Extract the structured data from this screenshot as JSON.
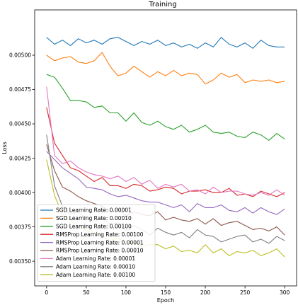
{
  "chart_data": {
    "type": "line",
    "title": "Training",
    "xlabel": "Epoch",
    "ylabel": "Loss",
    "xlim": [
      -15,
      315
    ],
    "ylim": [
      0.00332,
      0.00533
    ],
    "xticks": [
      0,
      50,
      100,
      150,
      200,
      250,
      300
    ],
    "xtick_labels": [
      "0",
      "50",
      "100",
      "150",
      "200",
      "250",
      "300"
    ],
    "yticks": [
      0.0035,
      0.00375,
      0.004,
      0.00425,
      0.0045,
      0.00475,
      0.005
    ],
    "ytick_labels": [
      "0.00350",
      "0.00375",
      "0.00400",
      "0.00425",
      "0.00450",
      "0.00475",
      "0.00500"
    ],
    "grid": false,
    "legend_position": "lower-left",
    "x": [
      0,
      10,
      20,
      30,
      40,
      50,
      60,
      70,
      80,
      90,
      100,
      110,
      120,
      130,
      140,
      150,
      160,
      170,
      180,
      190,
      200,
      210,
      220,
      230,
      240,
      250,
      260,
      270,
      280,
      290,
      300
    ],
    "series": [
      {
        "name": "SGD Learning Rate: 0.00001",
        "color": "#1f77b4",
        "values": [
          0.00513,
          0.00508,
          0.00511,
          0.00507,
          0.00512,
          0.00509,
          0.00511,
          0.00508,
          0.00512,
          0.00513,
          0.0051,
          0.00507,
          0.0051,
          0.00508,
          0.00511,
          0.00507,
          0.00509,
          0.00506,
          0.00508,
          0.00505,
          0.00509,
          0.00506,
          0.00513,
          0.00508,
          0.00506,
          0.00509,
          0.00505,
          0.00511,
          0.00507,
          0.00506,
          0.00506
        ]
      },
      {
        "name": "SGD Learning Rate: 0.00010",
        "color": "#ff7f0e",
        "values": [
          0.005,
          0.00496,
          0.00498,
          0.00499,
          0.00495,
          0.00494,
          0.00496,
          0.00502,
          0.00492,
          0.00485,
          0.00487,
          0.00492,
          0.00488,
          0.00484,
          0.00488,
          0.00485,
          0.00489,
          0.00485,
          0.00487,
          0.00486,
          0.00479,
          0.00482,
          0.00487,
          0.00484,
          0.00486,
          0.0048,
          0.00482,
          0.00481,
          0.00482,
          0.0048,
          0.00481
        ]
      },
      {
        "name": "SGD Learning Rate: 0.00100",
        "color": "#2ca02c",
        "values": [
          0.00486,
          0.00484,
          0.00476,
          0.00467,
          0.00467,
          0.00466,
          0.00462,
          0.00463,
          0.00458,
          0.00458,
          0.00452,
          0.00458,
          0.00451,
          0.00449,
          0.00452,
          0.00448,
          0.00446,
          0.00449,
          0.00444,
          0.00446,
          0.00449,
          0.00444,
          0.00443,
          0.00444,
          0.00441,
          0.0044,
          0.00444,
          0.00442,
          0.00438,
          0.00443,
          0.00439
        ]
      },
      {
        "name": "RMSProp Learning Rate: 0.00100",
        "color": "#d62728",
        "values": [
          0.00462,
          0.00436,
          0.00427,
          0.00418,
          0.00416,
          0.00412,
          0.00408,
          0.00411,
          0.00405,
          0.00405,
          0.00403,
          0.00406,
          0.00405,
          0.00401,
          0.00402,
          0.00404,
          0.00403,
          0.00399,
          0.00401,
          0.00401,
          0.00402,
          0.004,
          0.004,
          0.00403,
          0.00398,
          0.00399,
          0.00397,
          0.00401,
          0.00399,
          0.00397,
          0.004
        ]
      },
      {
        "name": "RMSProp Learning Rate: 0.00001",
        "color": "#9467bd",
        "values": [
          0.0043,
          0.00424,
          0.00418,
          0.00414,
          0.0041,
          0.00404,
          0.00403,
          0.00402,
          0.00399,
          0.00397,
          0.00398,
          0.00396,
          0.00394,
          0.00393,
          0.00393,
          0.00391,
          0.00389,
          0.00391,
          0.00386,
          0.00392,
          0.00389,
          0.00389,
          0.00391,
          0.00387,
          0.00386,
          0.00389,
          0.00385,
          0.00389,
          0.00386,
          0.00384,
          0.00388
        ]
      },
      {
        "name": "RMSProp Learning Rate: 0.00010",
        "color": "#8c564b",
        "values": [
          0.00435,
          0.00416,
          0.00404,
          0.00401,
          0.00397,
          0.00394,
          0.00392,
          0.0039,
          0.00386,
          0.00388,
          0.00383,
          0.00386,
          0.00384,
          0.00383,
          0.00386,
          0.0038,
          0.00382,
          0.0038,
          0.00379,
          0.00381,
          0.00377,
          0.00381,
          0.00376,
          0.00378,
          0.00379,
          0.00376,
          0.00373,
          0.00374,
          0.00372,
          0.00375,
          0.00369
        ]
      },
      {
        "name": "Adam Learning Rate: 0.00001",
        "color": "#e377c2",
        "values": [
          0.00477,
          0.00427,
          0.00421,
          0.00423,
          0.00418,
          0.00415,
          0.00413,
          0.00412,
          0.0041,
          0.00412,
          0.00408,
          0.00411,
          0.00406,
          0.00409,
          0.00403,
          0.00406,
          0.00404,
          0.00406,
          0.00401,
          0.00402,
          0.00399,
          0.00404,
          0.004,
          0.00401,
          0.00401,
          0.00399,
          0.00398,
          0.004,
          0.00398,
          0.00402,
          0.00398
        ]
      },
      {
        "name": "Adam Learning Rate: 0.00010",
        "color": "#7f7f7f",
        "values": [
          0.00442,
          0.00405,
          0.0039,
          0.00384,
          0.00386,
          0.00381,
          0.00379,
          0.00381,
          0.00377,
          0.00378,
          0.00372,
          0.00376,
          0.00373,
          0.00369,
          0.00374,
          0.00371,
          0.00369,
          0.00371,
          0.00367,
          0.00373,
          0.00369,
          0.00368,
          0.00364,
          0.00366,
          0.00368,
          0.00369,
          0.00364,
          0.00366,
          0.00363,
          0.00368,
          0.00365
        ]
      },
      {
        "name": "Adam Learning Rate: 0.00100",
        "color": "#bcbd22",
        "values": [
          0.00424,
          0.00398,
          0.00384,
          0.00379,
          0.00376,
          0.00372,
          0.00371,
          0.00368,
          0.00365,
          0.00367,
          0.00364,
          0.00363,
          0.00361,
          0.00362,
          0.00362,
          0.00359,
          0.00361,
          0.00357,
          0.00358,
          0.00356,
          0.00362,
          0.00356,
          0.00359,
          0.00354,
          0.00357,
          0.00356,
          0.00358,
          0.00354,
          0.00356,
          0.00359,
          0.00353
        ]
      }
    ]
  }
}
